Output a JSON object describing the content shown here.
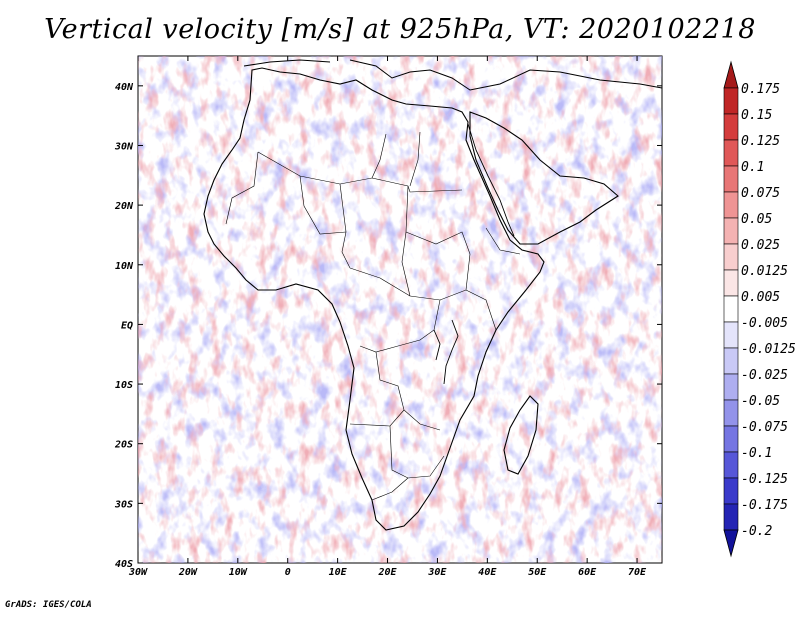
{
  "title": "Vertical velocity [m/s] at 925hPa, VT: 2020102218",
  "credit": "GrADS: IGES/COLA",
  "map": {
    "region": "Africa",
    "lon_range": [
      -30,
      75
    ],
    "lat_range": [
      -40,
      45
    ],
    "lon_ticks": [
      "30W",
      "20W",
      "10W",
      "0",
      "10E",
      "20E",
      "30E",
      "40E",
      "50E",
      "60E",
      "70E"
    ],
    "lat_ticks": [
      "40N",
      "30N",
      "20N",
      "10N",
      "EQ",
      "10S",
      "20S",
      "30S",
      "40S"
    ]
  },
  "colorbar": {
    "labels": [
      "0.175",
      "0.15",
      "0.125",
      "0.1",
      "0.075",
      "0.05",
      "0.025",
      "0.0125",
      "0.005",
      "-0.005",
      "-0.0125",
      "-0.025",
      "-0.05",
      "-0.075",
      "-0.1",
      "-0.125",
      "-0.175",
      "-0.2"
    ],
    "colors": [
      "#a51a1a",
      "#c02626",
      "#d43c3c",
      "#e05858",
      "#e87676",
      "#ef9494",
      "#f4b2b2",
      "#f8cece",
      "#fbe6e6",
      "#ffffff",
      "#e4e4fb",
      "#c9c9f6",
      "#aeaef0",
      "#9393ea",
      "#7575e2",
      "#5757d8",
      "#3a3acb",
      "#2424b4",
      "#12129a"
    ]
  }
}
